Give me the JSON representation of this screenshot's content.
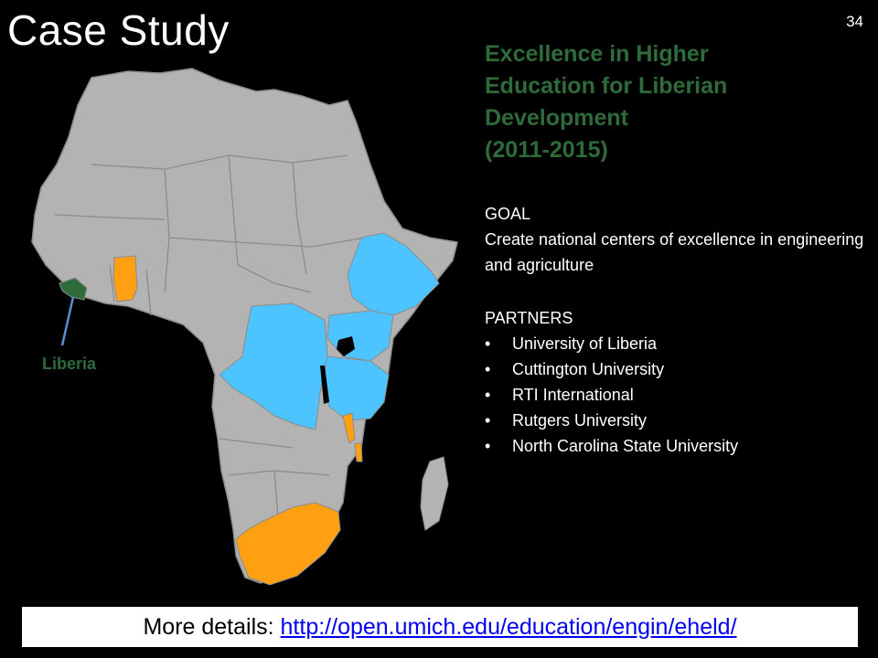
{
  "slide": {
    "title": "Case Study",
    "number": "34"
  },
  "heading": {
    "lines": [
      "Excellence in Higher",
      "Education for Liberian",
      "Development",
      "(2011-2015)"
    ]
  },
  "goal": {
    "label": "GOAL",
    "text": "Create national centers of excellence in engineering and agriculture"
  },
  "partners": {
    "label": "PARTNERS",
    "items": [
      "University of Liberia",
      "Cuttington University",
      "RTI International",
      "Rutgers University",
      "North Carolina State University"
    ]
  },
  "map": {
    "label": "Liberia",
    "colors": {
      "land": "#b3b3b3",
      "border": "#8c8c8c",
      "liberia": "#2f6b3d",
      "blue_countries": "#4dc3ff",
      "orange_countries": "#ff9f12",
      "pointer": "#5b8fd0"
    }
  },
  "footer": {
    "prefix": "More details: ",
    "link": "http://open.umich.edu/education/engin/eheld/"
  },
  "colors": {
    "heading": "#2e6b3a",
    "background": "#000000",
    "text": "#ffffff",
    "link": "#0000ee"
  }
}
